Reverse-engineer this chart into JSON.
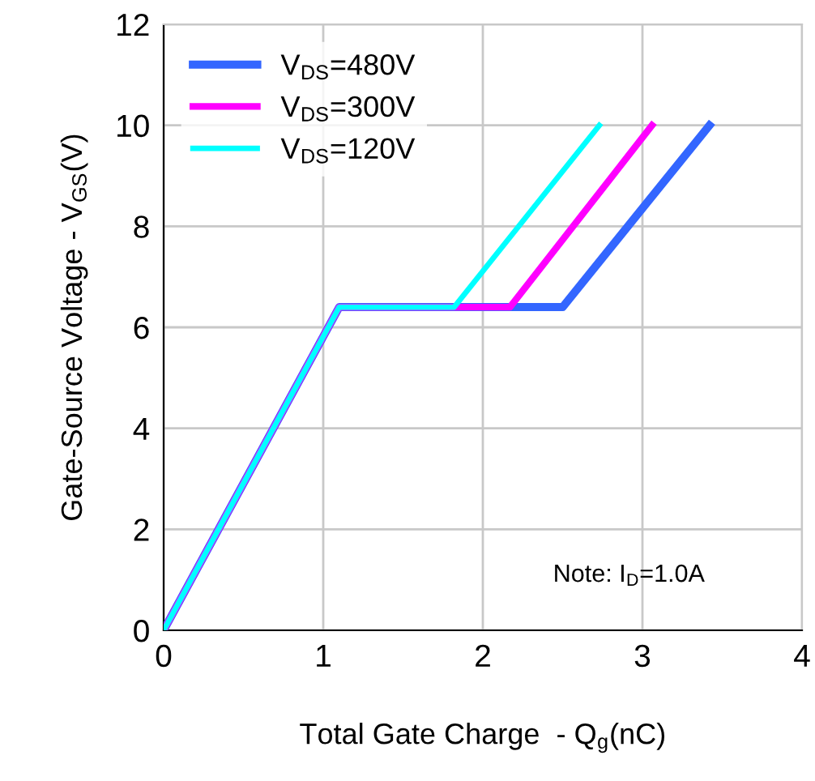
{
  "chart_data": {
    "type": "line",
    "xlabel": "Total Gate Charge  - Q$_{g}$(nC)",
    "ylabel": "Gate-Source Voltage - V$_{GS}$(V)",
    "series": [
      {
        "name": "V$_{DS}$=480V",
        "color": "#3366ff",
        "x": [
          0,
          1.1,
          2.5,
          3.42
        ],
        "values": [
          0,
          6.4,
          6.4,
          10
        ]
      },
      {
        "name": "V$_{DS}$=300V",
        "color": "#ff00ff",
        "x": [
          0,
          1.1,
          2.17,
          3.06
        ],
        "values": [
          0,
          6.4,
          6.4,
          10
        ]
      },
      {
        "name": "V$_{DS}$=120V",
        "color": "#00ffff",
        "x": [
          0,
          1.1,
          1.82,
          2.73
        ],
        "values": [
          0,
          6.4,
          6.4,
          10
        ]
      }
    ],
    "xlim": [
      0,
      4
    ],
    "xticks": [
      0,
      1,
      2,
      3,
      4
    ],
    "ylim": [
      0,
      12
    ],
    "yticks": [
      0,
      2,
      4,
      6,
      8,
      10,
      12
    ],
    "grid": true,
    "legend": "top left",
    "marker": "none",
    "line_style": "solid",
    "annotations": [
      "Note: I$_{D}$=1.0A"
    ]
  }
}
